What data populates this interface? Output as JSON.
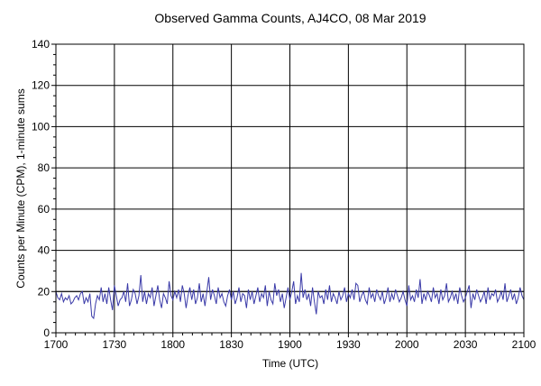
{
  "chart_data": {
    "type": "line",
    "title": "Observed Gamma Counts, AJ4CO, 08 Mar 2019",
    "xlabel": "Time (UTC)",
    "ylabel": "Counts per Minute (CPM), 1-minute sums",
    "x_range_minutes_after_1700": [
      0,
      240
    ],
    "ylim": [
      0,
      140
    ],
    "x_ticks": [
      "1700",
      "1730",
      "1800",
      "1830",
      "1900",
      "1930",
      "2000",
      "2030",
      "2100"
    ],
    "y_ticks": [
      "0",
      "20",
      "40",
      "60",
      "80",
      "100",
      "120",
      "140"
    ],
    "grid": true,
    "legend": "none",
    "reference_line": 20,
    "series": [
      {
        "color": "#3a3aa8",
        "y": [
          20,
          17,
          16,
          19,
          15,
          17,
          16,
          18,
          14,
          15,
          17,
          18,
          16,
          19,
          20,
          14,
          17,
          15,
          19,
          8,
          7,
          14,
          18,
          16,
          22,
          15,
          19,
          14,
          22,
          16,
          11,
          23,
          18,
          13,
          16,
          17,
          20,
          15,
          24,
          13,
          16,
          21,
          19,
          14,
          18,
          28,
          15,
          20,
          14,
          19,
          17,
          22,
          13,
          18,
          23,
          16,
          12,
          19,
          17,
          14,
          25,
          18,
          16,
          20,
          17,
          21,
          15,
          23,
          19,
          12,
          18,
          22,
          16,
          21,
          14,
          17,
          24,
          15,
          19,
          13,
          20,
          27,
          16,
          21,
          18,
          14,
          22,
          17,
          19,
          15,
          13,
          18,
          21,
          16,
          20,
          14,
          17,
          22,
          15,
          19,
          18,
          12,
          21,
          16,
          20,
          14,
          18,
          22,
          15,
          19,
          17,
          23,
          13,
          20,
          16,
          14,
          24,
          18,
          21,
          15,
          19,
          12,
          17,
          22,
          16,
          20,
          25,
          14,
          18,
          15,
          29,
          17,
          21,
          16,
          19,
          13,
          22,
          15,
          9,
          20,
          17,
          18,
          14,
          21,
          16,
          23,
          15,
          19,
          17,
          14,
          20,
          16,
          18,
          22,
          15,
          19,
          17,
          21,
          16,
          24,
          23,
          15,
          18,
          20,
          16,
          14,
          22,
          17,
          19,
          15,
          21,
          18,
          16,
          20,
          14,
          17,
          22,
          15,
          19,
          16,
          21,
          18,
          15,
          17,
          20,
          16,
          13,
          23,
          16,
          18,
          15,
          21,
          17,
          26,
          14,
          19,
          16,
          20,
          18,
          15,
          22,
          17,
          19,
          14,
          21,
          16,
          18,
          24,
          15,
          17,
          20,
          16,
          19,
          14,
          22,
          18,
          15,
          17,
          20,
          23,
          12,
          19,
          16,
          21,
          18,
          15,
          17,
          20,
          14,
          22,
          16,
          19,
          18,
          21,
          15,
          17,
          20,
          16,
          24,
          15,
          18,
          21,
          16,
          19,
          14,
          17,
          22,
          18,
          16
        ]
      }
    ]
  }
}
